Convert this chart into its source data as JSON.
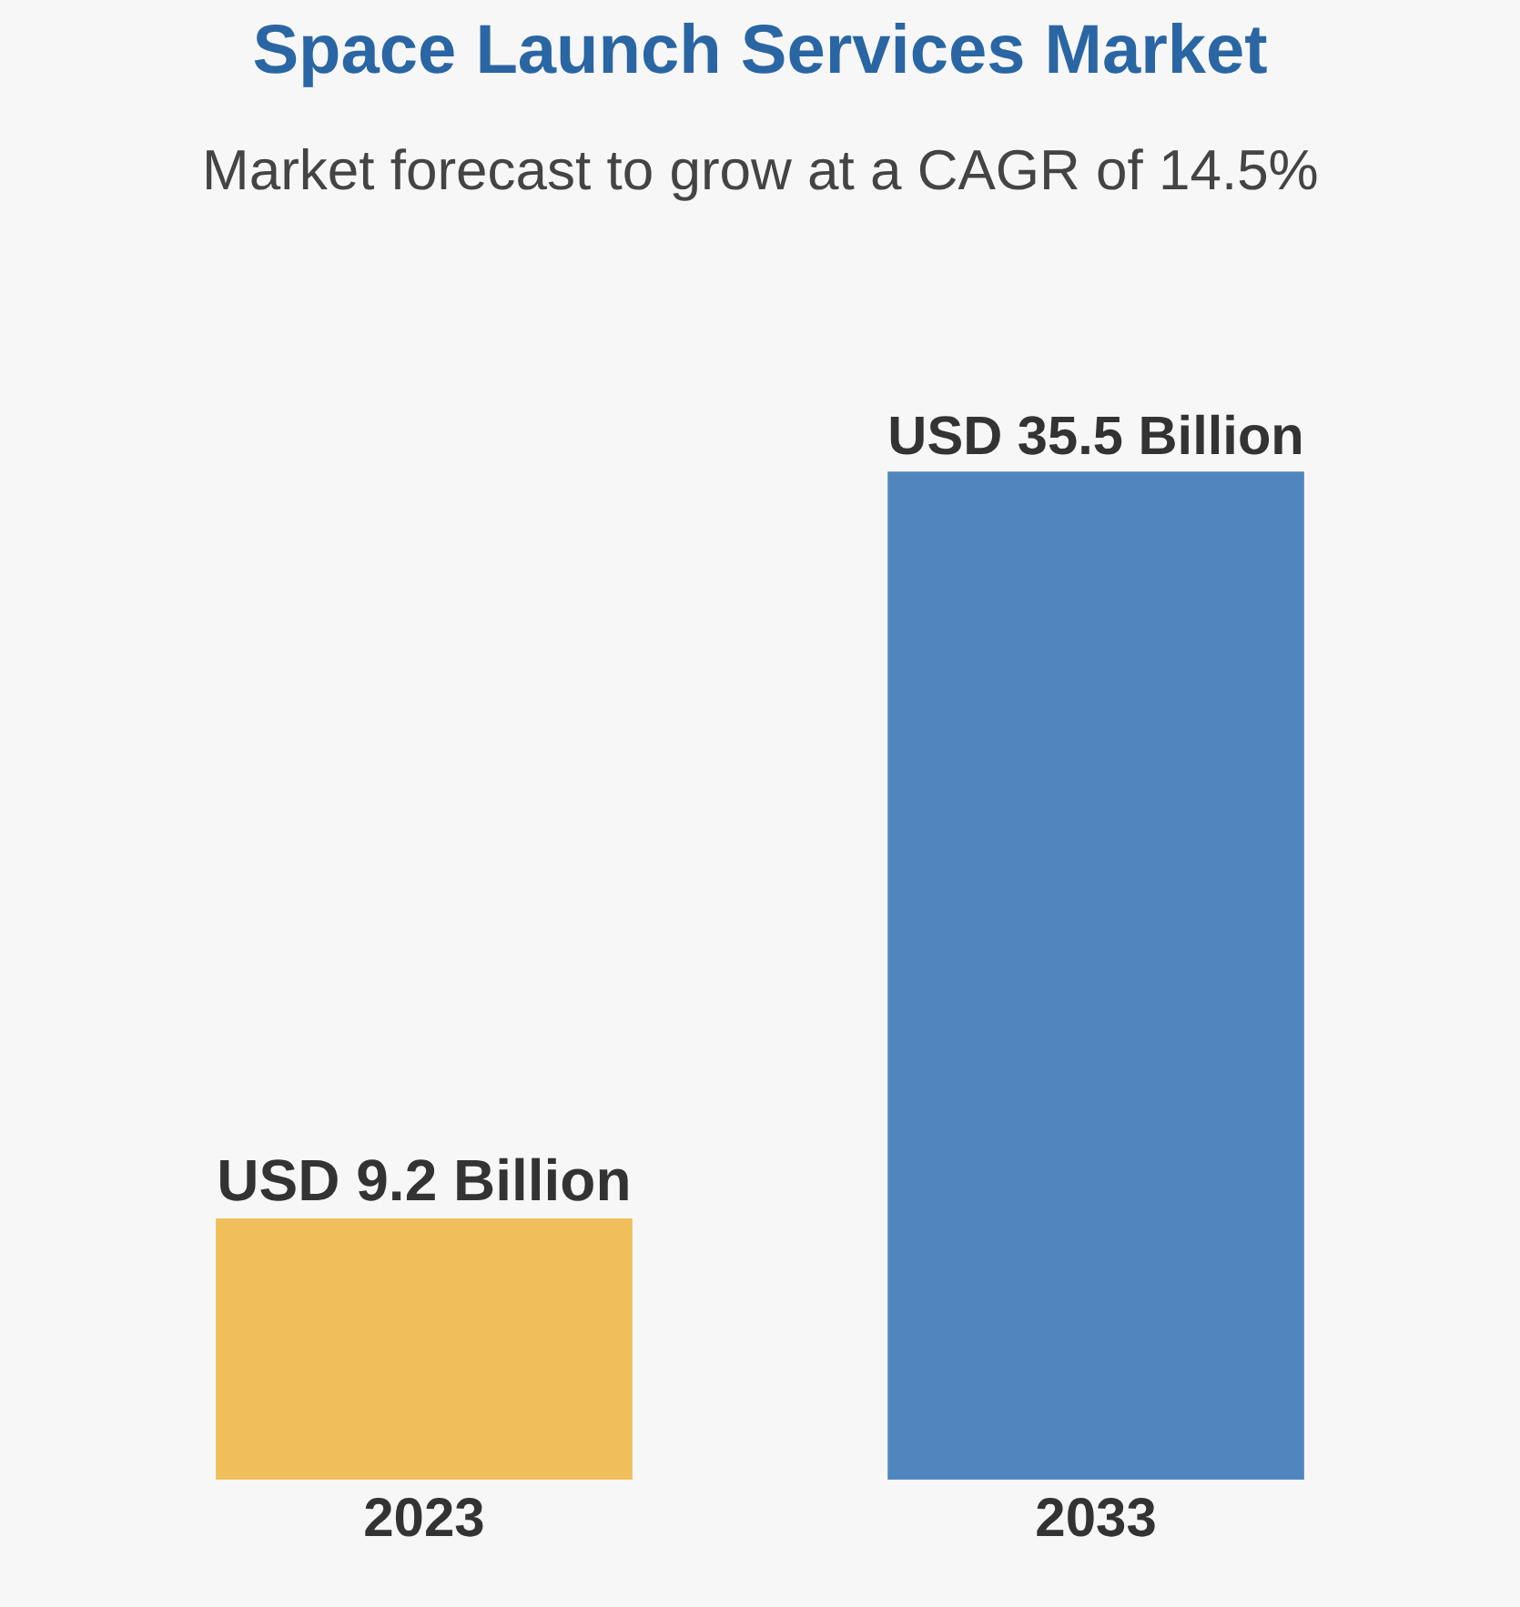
{
  "chart_data": {
    "type": "bar",
    "title": "Space Launch Services Market",
    "subtitle": "Market forecast to grow at a CAGR of 14.5%",
    "categories": [
      "2023",
      "2033"
    ],
    "tick_labels": "x",
    "grid": false,
    "legend": false,
    "colors": [
      "#f0bf5a",
      "#4f86bd"
    ],
    "values": [
      9.2,
      35.5
    ],
    "value_labels": [
      "USD 9.2 Billion",
      "USD 35.5 Billion"
    ]
  }
}
